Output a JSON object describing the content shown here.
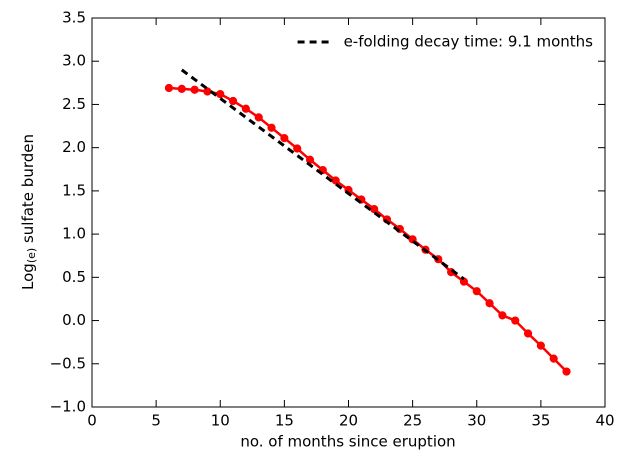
{
  "chart_data": {
    "type": "line",
    "xlabel": "no. of months since eruption",
    "ylabel": {
      "main": "Log",
      "subscript": "(e)",
      "rest": " sulfate burden"
    },
    "xlim": [
      0,
      40
    ],
    "xticks": [
      0,
      5,
      10,
      15,
      20,
      25,
      30,
      35,
      40
    ],
    "ylim": [
      -1.0,
      3.5
    ],
    "yticks": [
      {
        "value": -1.0,
        "label": "−1.0"
      },
      {
        "value": -0.5,
        "label": "−0.5"
      },
      {
        "value": 0.0,
        "label": "0.0"
      },
      0.5,
      {
        "value": 1.0,
        "label": "1.0"
      },
      1.5,
      {
        "value": 2.0,
        "label": "2.0"
      },
      2.5,
      {
        "value": 3.0,
        "label": "3.0"
      },
      3.5
    ],
    "legend": "upper right",
    "series": [
      {
        "color": "#ff0000",
        "linestyle": "solid",
        "marker": "circle",
        "x": [
          6,
          7,
          8,
          9,
          10,
          11,
          12,
          13,
          14,
          15,
          16,
          17,
          18,
          19,
          20,
          21,
          22,
          23,
          24,
          25,
          26,
          27,
          28,
          29,
          30,
          31,
          32,
          33,
          34,
          35,
          36,
          37
        ],
        "values": [
          2.69,
          2.68,
          2.67,
          2.65,
          2.62,
          2.54,
          2.45,
          2.35,
          2.23,
          2.11,
          1.99,
          1.86,
          1.74,
          1.62,
          1.51,
          1.4,
          1.29,
          1.17,
          1.06,
          0.94,
          0.82,
          0.71,
          0.56,
          0.45,
          0.34,
          0.2,
          0.06,
          0.0,
          -0.15,
          -0.29,
          -0.44,
          -0.59
        ]
      },
      {
        "name": "e-folding decay time: 9.1 months",
        "color": "#000000",
        "linestyle": "dashed",
        "marker": "none",
        "x": [
          7,
          29
        ],
        "values": [
          2.9,
          0.48
        ]
      }
    ]
  }
}
